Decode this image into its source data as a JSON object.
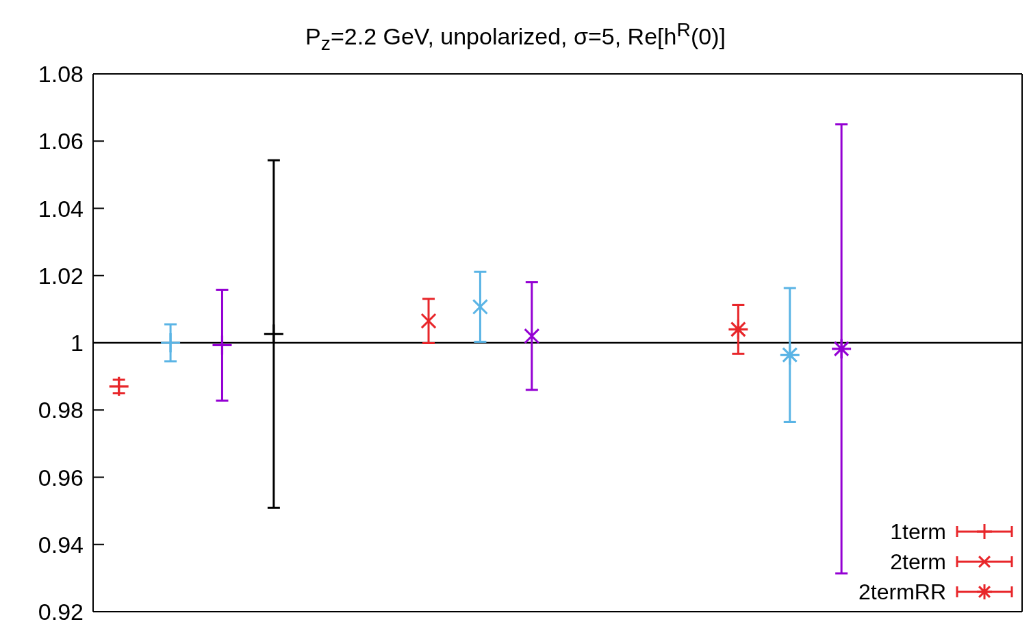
{
  "chart_data": {
    "type": "scatter",
    "title": "P$_{z}$=2.2 GeV, unpolarized, σ=5, Re[h$^{R}$(0)]",
    "categories": [
      null,
      null,
      null,
      null,
      null,
      null,
      null,
      null,
      null,
      null,
      null,
      null,
      null,
      null,
      null,
      null,
      null,
      null
    ],
    "ylim": [
      0.92,
      1.08
    ],
    "yticks": [
      0.92,
      0.94,
      0.96,
      0.98,
      1,
      1.02,
      1.04,
      1.06,
      1.08
    ],
    "series": [
      {
        "name": "1term",
        "color": "#e8262a",
        "marker": "cross",
        "values": [
          0.987,
          1.0,
          0.9993,
          1.0026,
          null,
          null,
          null,
          null,
          null,
          null,
          null,
          null,
          null,
          null,
          null,
          null,
          null,
          null
        ],
        "errors": [
          0.002,
          0.0055,
          0.0165,
          0.0517,
          null,
          null,
          null,
          null,
          null,
          null,
          null,
          null,
          null,
          null,
          null,
          null,
          null,
          null
        ],
        "colors": [
          "#e8262a",
          "#5ab4e5",
          "#9400d3",
          "#000000",
          null,
          null,
          null,
          null,
          null,
          null,
          null,
          null,
          null,
          null,
          null,
          null,
          null,
          null
        ]
      },
      {
        "name": "2term",
        "color": "#e8262a",
        "values": [
          null,
          null,
          null,
          null,
          null,
          null,
          1.0065,
          1.0107,
          1.002,
          null,
          null,
          null,
          null,
          null,
          null,
          null,
          null,
          null
        ],
        "errors": [
          null,
          null,
          null,
          null,
          null,
          null,
          0.0066,
          0.0104,
          0.016,
          null,
          null,
          null,
          null,
          null,
          null,
          null,
          null,
          null
        ],
        "colors": [
          null,
          null,
          null,
          null,
          null,
          null,
          "#e8262a",
          "#5ab4e5",
          "#9400d3",
          null,
          null,
          null,
          null,
          null,
          null,
          null,
          null,
          null
        ]
      },
      {
        "name": "2termRR",
        "color": "#e8262a",
        "marker": "star",
        "values": [
          null,
          null,
          null,
          null,
          null,
          null,
          null,
          null,
          null,
          null,
          null,
          null,
          1.004,
          0.9964,
          0.9982,
          null,
          null,
          null
        ],
        "errors": [
          null,
          null,
          null,
          null,
          null,
          null,
          null,
          null,
          null,
          null,
          null,
          null,
          0.0073,
          0.0199,
          0.0668,
          null,
          null,
          null
        ],
        "colors": [
          null,
          null,
          null,
          null,
          null,
          null,
          null,
          null,
          null,
          null,
          null,
          null,
          "#e8262a",
          "#5ab4e5",
          "#9400d3",
          null,
          null,
          null
        ]
      }
    ],
    "ref_lines": [
      {
        "axis": "y",
        "value": 1,
        "color": "#000000"
      }
    ],
    "tick_labels": "y",
    "legend": "bottom right"
  }
}
